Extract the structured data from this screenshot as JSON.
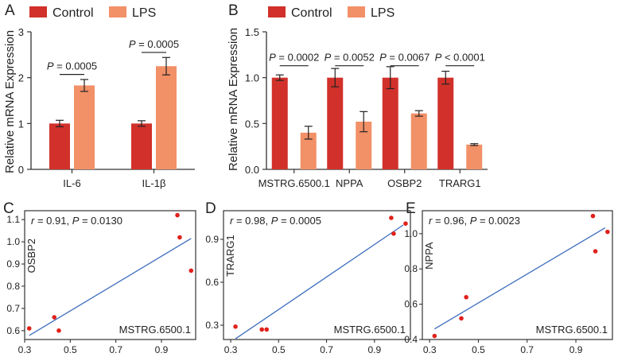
{
  "colors": {
    "control": "#d1312a",
    "lps": "#f29067",
    "point": "#e0211b",
    "fit": "#3d6dbd",
    "axis": "#333333"
  },
  "legend": {
    "control": "Control",
    "lps": "LPS"
  },
  "chart_data": [
    {
      "panel": "A",
      "type": "bar",
      "ylabel": "Relative mRNA Expression",
      "ylim": [
        0,
        3
      ],
      "yticks": [
        0,
        1,
        2,
        3
      ],
      "categories": [
        "IL-6",
        "IL-1β"
      ],
      "series": [
        {
          "name": "Control",
          "values": [
            1.0,
            1.0
          ],
          "errors": [
            0.07,
            0.06
          ]
        },
        {
          "name": "LPS",
          "values": [
            1.83,
            2.25
          ],
          "errors": [
            0.13,
            0.19
          ]
        }
      ],
      "pvalues": [
        {
          "label": "P",
          "text": " = 0.0005",
          "category_index": 0,
          "y": 2.07
        },
        {
          "label": "P",
          "text": " = 0.0005",
          "category_index": 1,
          "y": 2.55
        }
      ]
    },
    {
      "panel": "B",
      "type": "bar",
      "ylabel": "Relative mRNA Expression",
      "ylim": [
        0,
        1.5
      ],
      "yticks": [
        "0.0",
        "0.5",
        "1.0",
        "1.5"
      ],
      "yticks_values": [
        0,
        0.5,
        1.0,
        1.5
      ],
      "categories": [
        "MSTRG.6500.1",
        "NPPA",
        "OSBP2",
        "TRARG1"
      ],
      "series": [
        {
          "name": "Control",
          "values": [
            1.0,
            1.0,
            1.0,
            1.0
          ],
          "errors": [
            0.03,
            0.1,
            0.12,
            0.07
          ]
        },
        {
          "name": "LPS",
          "values": [
            0.4,
            0.52,
            0.61,
            0.27
          ],
          "errors": [
            0.07,
            0.11,
            0.03,
            0.01
          ]
        }
      ],
      "pvalues": [
        {
          "label": "P",
          "text": " = 0.0002",
          "category_index": 0,
          "y": 1.13
        },
        {
          "label": "P",
          "text": " = 0.0052",
          "category_index": 1,
          "y": 1.13
        },
        {
          "label": "P",
          "text": " = 0.0067",
          "category_index": 2,
          "y": 1.13
        },
        {
          "label": "P",
          "text": " < 0.0001",
          "category_index": 3,
          "y": 1.13
        }
      ]
    },
    {
      "panel": "C",
      "type": "scatter",
      "ylabel": "OSBP2",
      "xlabel": "MSTRG.6500.1",
      "xlim": [
        0.3,
        1.05
      ],
      "ylim": [
        0.56,
        1.14
      ],
      "xticks": [
        "0.3",
        "0.5",
        "0.7",
        "0.9"
      ],
      "xticks_values": [
        0.3,
        0.5,
        0.7,
        0.9
      ],
      "yticks": [
        "0.6",
        "0.7",
        "0.8",
        "0.9",
        "1.0",
        "1.1"
      ],
      "yticks_values": [
        0.6,
        0.7,
        0.8,
        0.9,
        1.0,
        1.1
      ],
      "points": [
        {
          "x": 0.32,
          "y": 0.61
        },
        {
          "x": 0.43,
          "y": 0.66
        },
        {
          "x": 0.45,
          "y": 0.6
        },
        {
          "x": 0.97,
          "y": 1.12
        },
        {
          "x": 0.98,
          "y": 1.02
        },
        {
          "x": 1.03,
          "y": 0.87
        }
      ],
      "fit": {
        "x0": 0.32,
        "y0": 0.578,
        "x1": 1.03,
        "y1": 1.015
      },
      "stat": {
        "r_label": "r",
        "r_text": " = 0.91, ",
        "p_label": "P",
        "p_text": " = 0.0130"
      }
    },
    {
      "panel": "D",
      "type": "scatter",
      "ylabel": "TRARG1",
      "xlabel": "MSTRG.6500.1",
      "xlim": [
        0.27,
        1.05
      ],
      "ylim": [
        0.2,
        1.1
      ],
      "xticks": [
        "0.3",
        "0.5",
        "0.7",
        "0.9"
      ],
      "xticks_values": [
        0.3,
        0.5,
        0.7,
        0.9
      ],
      "yticks": [
        "0.3",
        "0.6",
        "0.9"
      ],
      "yticks_values": [
        0.3,
        0.6,
        0.9
      ],
      "points": [
        {
          "x": 0.32,
          "y": 0.29
        },
        {
          "x": 0.43,
          "y": 0.27
        },
        {
          "x": 0.45,
          "y": 0.27
        },
        {
          "x": 0.97,
          "y": 1.05
        },
        {
          "x": 0.98,
          "y": 0.94
        },
        {
          "x": 1.03,
          "y": 1.01
        }
      ],
      "fit": {
        "x0": 0.32,
        "y0": 0.205,
        "x1": 1.02,
        "y1": 1.0
      },
      "stat": {
        "r_label": "r",
        "r_text": " = 0.98, ",
        "p_label": "P",
        "p_text": " = 0.0005"
      }
    },
    {
      "panel": "E",
      "type": "scatter",
      "ylabel": "NPPA",
      "xlabel": "MSTRG.6500.1",
      "xlim": [
        0.27,
        1.05
      ],
      "ylim": [
        0.4,
        1.13
      ],
      "xticks": [
        "0.3",
        "0.5",
        "0.7",
        "0.9"
      ],
      "xticks_values": [
        0.3,
        0.5,
        0.7,
        0.9
      ],
      "yticks": [
        "0.4",
        "0.6",
        "0.8",
        "1.0"
      ],
      "yticks_values": [
        0.4,
        0.6,
        0.8,
        1.0
      ],
      "points": [
        {
          "x": 0.32,
          "y": 0.42
        },
        {
          "x": 0.43,
          "y": 0.52
        },
        {
          "x": 0.45,
          "y": 0.64
        },
        {
          "x": 0.97,
          "y": 1.1
        },
        {
          "x": 0.98,
          "y": 0.9
        },
        {
          "x": 1.03,
          "y": 1.01
        }
      ],
      "fit": {
        "x0": 0.32,
        "y0": 0.46,
        "x1": 1.02,
        "y1": 1.033
      },
      "stat": {
        "r_label": "r",
        "r_text": " = 0.96, ",
        "p_label": "P",
        "p_text": " = 0.0023"
      }
    }
  ]
}
